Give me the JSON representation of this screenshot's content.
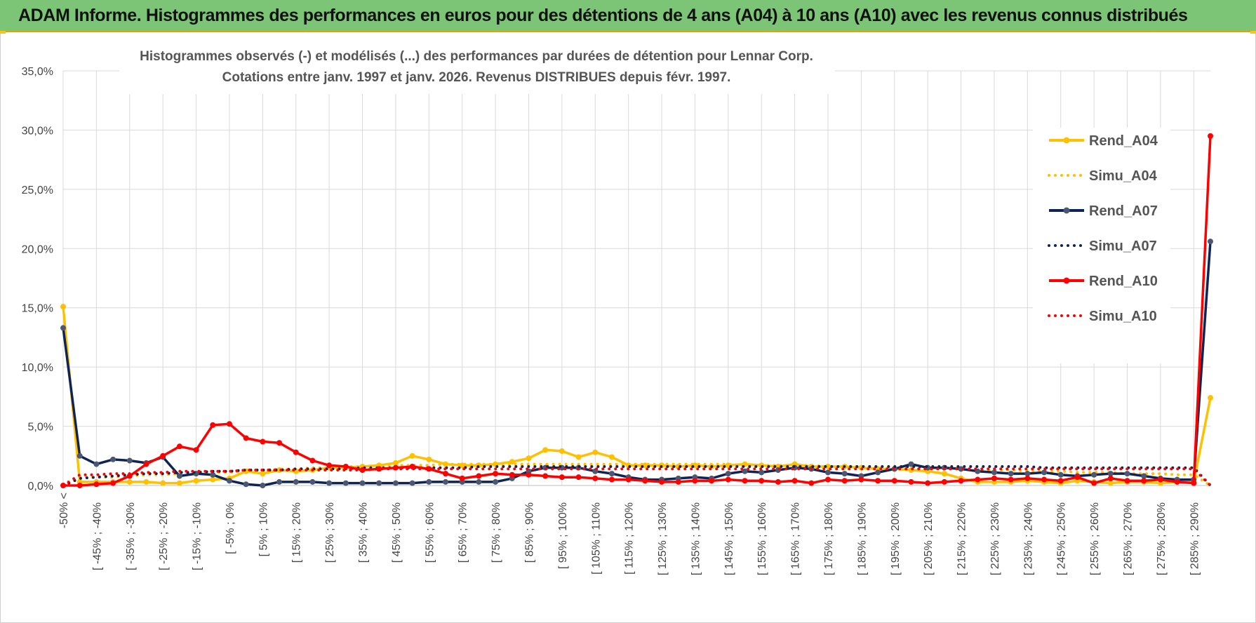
{
  "banner": {
    "title": "ADAM Informe. Histogrammes des performances en euros pour des détentions de 4 ans (A04) à 10 ans (A10) avec les revenus connus distribués"
  },
  "chart_data": {
    "type": "line",
    "title_line1": "Histogrammes observés (-) et modélisés (...) des performances par durées de détention pour Lennar Corp.",
    "title_line2": "Cotations entre janv. 1997 et janv. 2026. Revenus DISTRIBUES depuis févr. 1997.",
    "ylim": [
      0,
      35
    ],
    "ytick_labels": [
      "0,0%",
      "5,0%",
      "10,0%",
      "15,0%",
      "20,0%",
      "25,0%",
      "30,0%",
      "35,0%"
    ],
    "x_tick_labels": [
      "-50% <",
      "[ -45% ; -40%",
      "[ -35% ; -30%",
      "[ -25% ; -20%",
      "[ -15% ; -10%",
      "[ -5% ; 0%",
      "[ 5% ; 10%",
      "[ 15% ; 20%",
      "[ 25% ; 30%",
      "[ 35% ; 40%",
      "[ 45% ; 50%",
      "[ 55% ; 60%",
      "[ 65% ; 70%",
      "[ 75% ; 80%",
      "[ 85% ; 90%",
      "[ 95% ; 100%",
      "[ 105% ; 110%",
      "[ 115% ; 120%",
      "[ 125% ; 130%",
      "[ 135% ; 140%",
      "[ 145% ; 150%",
      "[ 155% ; 160%",
      "[ 165% ; 170%",
      "[ 175% ; 180%",
      "[ 185% ; 190%",
      "[ 195% ; 200%",
      "[ 205% ; 210%",
      "[ 215% ; 220%",
      "[ 225% ; 230%",
      "[ 235% ; 240%",
      "[ 245% ; 250%",
      "[ 255% ; 260%",
      "[ 265% ; 270%",
      "[ 275% ; 280%",
      "[ 285% ; 290%"
    ],
    "n_points": 70,
    "legend_position": "right",
    "grid": true,
    "series": [
      {
        "name": "Rend_A04",
        "style": "solid",
        "color": "#FFC000",
        "values": [
          15.1,
          0.3,
          0.3,
          0.3,
          0.3,
          0.3,
          0.2,
          0.2,
          0.4,
          0.5,
          0.6,
          1.2,
          1.0,
          1.3,
          1.2,
          1.3,
          1.5,
          1.5,
          1.6,
          1.7,
          1.9,
          2.5,
          2.2,
          1.8,
          1.7,
          1.7,
          1.8,
          2.0,
          2.3,
          3.0,
          2.9,
          2.4,
          2.8,
          2.4,
          1.7,
          1.7,
          1.7,
          1.6,
          1.7,
          1.6,
          1.7,
          1.8,
          1.7,
          1.6,
          1.8,
          1.6,
          1.6,
          1.6,
          1.5,
          1.4,
          1.4,
          1.3,
          1.2,
          1.0,
          0.6,
          0.3,
          0.3,
          0.3,
          0.4,
          0.3,
          0.2,
          0.4,
          0.3,
          0.2,
          0.3,
          0.3,
          0.2,
          0.3,
          0.3,
          7.4
        ]
      },
      {
        "name": "Simu_A04",
        "style": "dotted",
        "color": "#FFC000",
        "values": [
          0.0,
          0.7,
          0.7,
          0.7,
          0.8,
          0.9,
          0.9,
          1.0,
          1.0,
          1.1,
          1.1,
          1.2,
          1.3,
          1.4,
          1.4,
          1.5,
          1.5,
          1.6,
          1.6,
          1.7,
          1.7,
          1.7,
          1.7,
          1.8,
          1.8,
          1.8,
          1.8,
          1.8,
          1.8,
          1.8,
          1.8,
          1.8,
          1.8,
          1.8,
          1.8,
          1.8,
          1.8,
          1.8,
          1.8,
          1.8,
          1.8,
          1.7,
          1.7,
          1.7,
          1.7,
          1.7,
          1.6,
          1.6,
          1.6,
          1.5,
          1.5,
          1.5,
          1.4,
          1.4,
          1.4,
          1.3,
          1.3,
          1.3,
          1.2,
          1.2,
          1.2,
          1.1,
          1.1,
          1.1,
          1.0,
          1.0,
          1.0,
          0.9,
          0.9,
          0.0
        ]
      },
      {
        "name": "Rend_A07",
        "style": "solid",
        "color": "#0F2454",
        "values": [
          13.3,
          2.5,
          1.8,
          2.2,
          2.1,
          1.9,
          2.4,
          0.8,
          1.0,
          0.9,
          0.4,
          0.1,
          0.0,
          0.3,
          0.3,
          0.3,
          0.2,
          0.2,
          0.2,
          0.2,
          0.2,
          0.2,
          0.3,
          0.3,
          0.3,
          0.3,
          0.3,
          0.6,
          1.2,
          1.5,
          1.5,
          1.5,
          1.2,
          1.0,
          0.7,
          0.5,
          0.5,
          0.6,
          0.7,
          0.6,
          1.0,
          1.2,
          1.1,
          1.3,
          1.5,
          1.4,
          1.1,
          1.0,
          0.8,
          1.1,
          1.4,
          1.8,
          1.5,
          1.5,
          1.4,
          1.2,
          1.1,
          1.0,
          1.0,
          1.1,
          0.9,
          0.8,
          0.9,
          1.0,
          1.0,
          0.8,
          0.6,
          0.5,
          0.5,
          20.6
        ]
      },
      {
        "name": "Simu_A07",
        "style": "dotted",
        "color": "#0F2454",
        "values": [
          0.0,
          0.6,
          0.7,
          0.8,
          0.9,
          1.0,
          1.0,
          1.1,
          1.1,
          1.2,
          1.2,
          1.3,
          1.3,
          1.3,
          1.4,
          1.4,
          1.4,
          1.4,
          1.5,
          1.5,
          1.5,
          1.5,
          1.5,
          1.5,
          1.5,
          1.6,
          1.6,
          1.6,
          1.6,
          1.6,
          1.6,
          1.6,
          1.6,
          1.6,
          1.6,
          1.6,
          1.6,
          1.6,
          1.6,
          1.6,
          1.6,
          1.6,
          1.6,
          1.6,
          1.6,
          1.6,
          1.6,
          1.6,
          1.6,
          1.6,
          1.6,
          1.6,
          1.6,
          1.6,
          1.6,
          1.6,
          1.6,
          1.6,
          1.6,
          1.5,
          1.5,
          1.5,
          1.5,
          1.5,
          1.5,
          1.5,
          1.5,
          1.5,
          1.5,
          0.0
        ]
      },
      {
        "name": "Rend_A10",
        "style": "solid",
        "color": "#FF0000",
        "values": [
          0.0,
          0.0,
          0.1,
          0.2,
          0.8,
          1.8,
          2.5,
          3.3,
          3.0,
          5.1,
          5.2,
          4.0,
          3.7,
          3.6,
          2.8,
          2.1,
          1.7,
          1.6,
          1.3,
          1.4,
          1.5,
          1.6,
          1.4,
          1.0,
          0.6,
          0.8,
          1.0,
          0.9,
          0.9,
          0.8,
          0.7,
          0.7,
          0.6,
          0.5,
          0.5,
          0.4,
          0.3,
          0.3,
          0.4,
          0.4,
          0.5,
          0.4,
          0.4,
          0.3,
          0.4,
          0.2,
          0.5,
          0.4,
          0.5,
          0.4,
          0.4,
          0.3,
          0.2,
          0.3,
          0.4,
          0.5,
          0.6,
          0.5,
          0.6,
          0.5,
          0.4,
          0.7,
          0.2,
          0.6,
          0.4,
          0.4,
          0.5,
          0.3,
          0.2,
          29.5
        ]
      },
      {
        "name": "Simu_A10",
        "style": "dotted",
        "color": "#FF0000",
        "values": [
          0.0,
          0.9,
          0.9,
          1.0,
          1.0,
          1.1,
          1.1,
          1.2,
          1.2,
          1.2,
          1.2,
          1.3,
          1.3,
          1.3,
          1.3,
          1.3,
          1.3,
          1.3,
          1.3,
          1.4,
          1.4,
          1.4,
          1.4,
          1.4,
          1.4,
          1.4,
          1.4,
          1.4,
          1.4,
          1.4,
          1.4,
          1.4,
          1.4,
          1.4,
          1.4,
          1.4,
          1.4,
          1.4,
          1.4,
          1.4,
          1.4,
          1.4,
          1.4,
          1.4,
          1.4,
          1.4,
          1.4,
          1.4,
          1.4,
          1.4,
          1.4,
          1.4,
          1.4,
          1.4,
          1.4,
          1.4,
          1.4,
          1.4,
          1.4,
          1.4,
          1.4,
          1.4,
          1.4,
          1.4,
          1.4,
          1.4,
          1.4,
          1.4,
          1.4,
          0.0
        ]
      }
    ]
  }
}
